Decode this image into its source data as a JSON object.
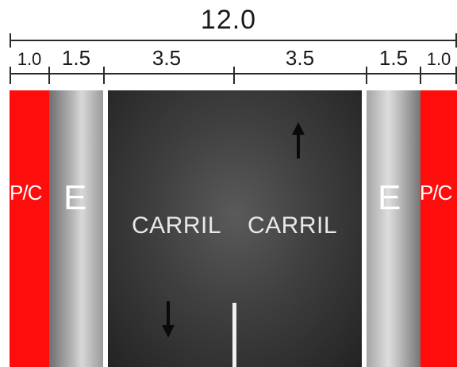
{
  "dimensions": {
    "total": "12.0",
    "segments": [
      "1.0",
      "1.5",
      "3.5",
      "3.5",
      "1.5",
      "1.0"
    ]
  },
  "zones": {
    "left_sidewalk": "P/C",
    "left_shoulder": "E",
    "lane_left": "CARRIL",
    "lane_right": "CARRIL",
    "right_shoulder": "E",
    "right_sidewalk": "P/C"
  },
  "colors": {
    "sidewalk": "#ff0d0d",
    "shoulder": "#b9b9b9",
    "lane": "#3f3f3f",
    "marking": "#f0f0f0"
  },
  "icons": {
    "up_arrow": "arrow-up-icon",
    "down_arrow": "arrow-down-icon"
  }
}
